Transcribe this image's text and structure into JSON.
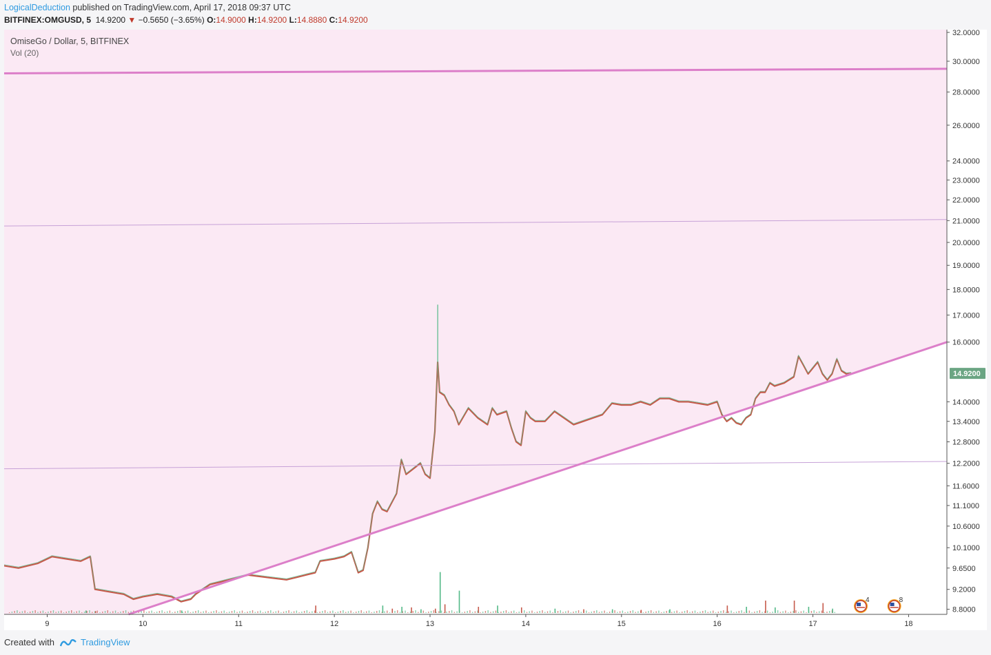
{
  "header": {
    "author": "LogicalDeduction",
    "published_text": "published on TradingView.com, April 17, 2018 09:37 UTC",
    "symbol": "BITFINEX:OMGUSD, 5",
    "last": "14.9200",
    "change": "−0.5650 (−3.65%)",
    "open_label": "O:",
    "open": "14.9000",
    "high_label": "H:",
    "high": "14.9200",
    "low_label": "L:",
    "low": "14.8880",
    "close_label": "C:",
    "close": "14.9200"
  },
  "footer": {
    "created_with": "Created with",
    "brand": "TradingView"
  },
  "chart_data": {
    "type": "line",
    "title": "OmiseGo / Dollar, 5, BITFINEX",
    "subtitle": "Vol (20)",
    "scale": "log",
    "ylim": [
      8.7,
      32.2
    ],
    "y_ticks": [
      "32.0000",
      "30.0000",
      "28.0000",
      "26.0000",
      "24.0000",
      "23.0000",
      "22.0000",
      "21.0000",
      "20.0000",
      "19.0000",
      "18.0000",
      "17.0000",
      "16.0000",
      "14.0000",
      "13.4000",
      "12.8000",
      "12.2000",
      "11.6000",
      "11.1000",
      "10.6000",
      "10.1000",
      "9.6500",
      "9.2000",
      "8.8000"
    ],
    "y_tick_values": [
      32.0,
      30.0,
      28.0,
      26.0,
      24.0,
      23.0,
      22.0,
      21.0,
      20.0,
      19.0,
      18.0,
      17.0,
      16.0,
      14.0,
      13.4,
      12.8,
      12.2,
      11.6,
      11.1,
      10.6,
      10.1,
      9.65,
      9.2,
      8.8
    ],
    "x_range": [
      8.55,
      18.4
    ],
    "x_ticks": [
      "9",
      "10",
      "11",
      "12",
      "13",
      "14",
      "15",
      "16",
      "17",
      "18"
    ],
    "x_tick_values": [
      9,
      10,
      11,
      12,
      13,
      14,
      15,
      16,
      17,
      18
    ],
    "last_price_label": "14.9200",
    "series": [
      {
        "values_x": [
          8.55,
          8.7,
          8.9,
          9.05,
          9.2,
          9.35,
          9.45,
          9.5,
          9.65,
          9.8,
          9.9,
          10.0,
          10.15,
          10.3,
          10.4,
          10.5,
          10.55,
          10.7,
          10.9,
          11.1,
          11.3,
          11.5,
          11.6,
          11.7,
          11.8,
          11.85,
          12.0,
          12.1,
          12.18,
          12.25,
          12.3,
          12.35,
          12.4,
          12.45,
          12.5,
          12.55,
          12.65,
          12.7,
          12.75,
          12.8,
          12.9,
          12.95,
          13.0,
          13.05,
          13.08,
          13.1,
          13.15,
          13.2,
          13.25,
          13.3,
          13.4,
          13.5,
          13.6,
          13.65,
          13.7,
          13.8,
          13.85,
          13.9,
          13.95,
          14.0,
          14.05,
          14.1,
          14.2,
          14.3,
          14.4,
          14.5,
          14.6,
          14.7,
          14.8,
          14.9,
          15.0,
          15.1,
          15.2,
          15.3,
          15.4,
          15.5,
          15.6,
          15.7,
          15.8,
          15.9,
          16.0,
          16.05,
          16.1,
          16.15,
          16.2,
          16.25,
          16.3,
          16.35,
          16.4,
          16.45,
          16.5,
          16.55,
          16.6,
          16.7,
          16.8,
          16.85,
          16.9,
          16.95,
          17.0,
          17.05,
          17.1,
          17.15,
          17.2,
          17.25,
          17.3,
          17.35,
          17.4
        ],
        "values_y": [
          9.7,
          9.65,
          9.75,
          9.9,
          9.85,
          9.8,
          9.9,
          9.2,
          9.15,
          9.1,
          9.0,
          9.05,
          9.1,
          9.05,
          8.95,
          9.0,
          9.1,
          9.3,
          9.4,
          9.5,
          9.45,
          9.4,
          9.45,
          9.5,
          9.55,
          9.8,
          9.85,
          9.9,
          10.0,
          9.55,
          9.6,
          10.1,
          10.9,
          11.2,
          11.0,
          10.95,
          11.4,
          12.3,
          11.9,
          12.0,
          12.2,
          11.9,
          11.8,
          13.1,
          15.3,
          14.3,
          14.2,
          13.9,
          13.7,
          13.3,
          13.8,
          13.5,
          13.3,
          13.8,
          13.6,
          13.7,
          13.2,
          12.8,
          12.7,
          13.7,
          13.5,
          13.4,
          13.4,
          13.7,
          13.5,
          13.3,
          13.4,
          13.5,
          13.6,
          13.95,
          13.9,
          13.9,
          14.0,
          13.9,
          14.1,
          14.1,
          14.0,
          14.0,
          13.95,
          13.9,
          14.0,
          13.6,
          13.4,
          13.5,
          13.35,
          13.3,
          13.5,
          13.6,
          14.1,
          14.3,
          14.3,
          14.6,
          14.5,
          14.6,
          14.8,
          15.5,
          15.2,
          14.9,
          15.1,
          15.3,
          14.9,
          14.7,
          14.9,
          15.4,
          15.0,
          14.9,
          14.92
        ]
      }
    ],
    "volume": {
      "spikes_x": [
        9.4,
        9.5,
        10.4,
        11.8,
        12.5,
        12.6,
        12.7,
        12.8,
        12.9,
        13.05,
        13.1,
        13.15,
        13.3,
        13.5,
        13.7,
        13.95,
        14.3,
        14.6,
        14.9,
        15.2,
        15.5,
        16.1,
        16.3,
        16.5,
        16.6,
        16.8,
        16.95,
        17.1,
        17.2
      ],
      "spikes_h": [
        0.2,
        0.15,
        0.2,
        0.6,
        0.6,
        0.35,
        0.5,
        0.45,
        0.3,
        0.35,
        3.3,
        0.7,
        1.8,
        0.5,
        0.6,
        0.45,
        0.35,
        0.3,
        0.3,
        0.25,
        0.3,
        0.6,
        0.5,
        1.0,
        0.45,
        1.0,
        0.5,
        0.8,
        0.35
      ]
    },
    "trendlines": [
      {
        "x1": 8.55,
        "y1": 29.2,
        "x2": 18.4,
        "y2": 29.5,
        "width": 3
      },
      {
        "x1": 8.55,
        "y1": 20.75,
        "x2": 18.4,
        "y2": 21.05,
        "width": 1
      },
      {
        "x1": 8.55,
        "y1": 12.05,
        "x2": 18.4,
        "y2": 12.25,
        "width": 1
      },
      {
        "x1": 9.85,
        "y1": 8.7,
        "x2": 18.4,
        "y2": 16.0,
        "width": 3
      }
    ],
    "event_badges": [
      {
        "x": 17.5,
        "count": "4"
      },
      {
        "x": 17.85,
        "count": "8"
      }
    ],
    "colors": {
      "shade": "#fbe9f4",
      "trendline": "#dc7fc9",
      "hline": "#c6a1d7",
      "candle_up": "#53b987",
      "candle_down": "#c65a4b",
      "price_badge": "#6ba583",
      "vol_ma": "#f0a070"
    },
    "legend": "none",
    "grid": false
  }
}
